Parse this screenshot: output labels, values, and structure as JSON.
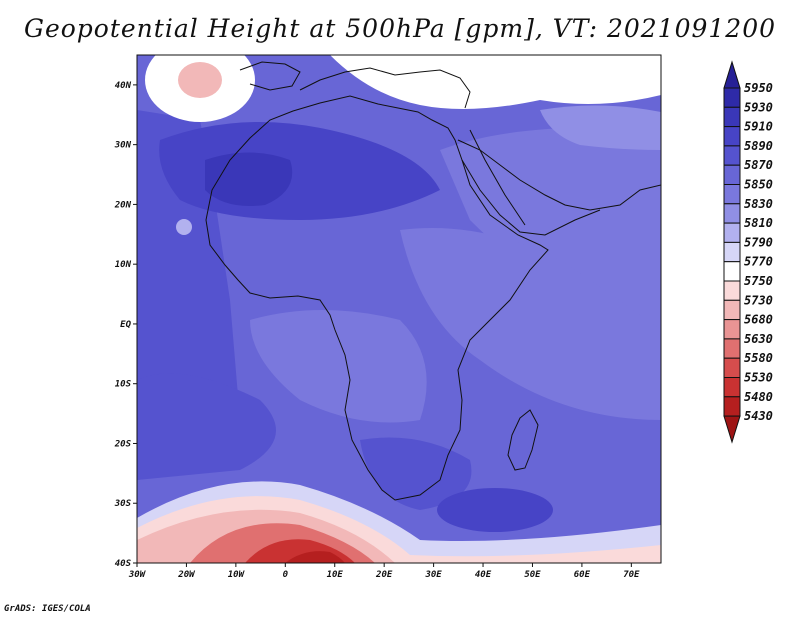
{
  "title": "Geopotential Height at 500hPa [gpm], VT: 2021091200",
  "credit": "GrADS: IGES/COLA",
  "chart_data": {
    "type": "heatmap",
    "title": "Geopotential Height at 500hPa [gpm], VT: 2021091200",
    "variable": "Geopotential Height",
    "level": "500hPa",
    "units": "gpm",
    "valid_time": "2021091200",
    "xlim": [
      -30,
      76
    ],
    "ylim": [
      -40,
      45
    ],
    "x_ticks": [
      {
        "value": -30,
        "label": "30W"
      },
      {
        "value": -20,
        "label": "20W"
      },
      {
        "value": -10,
        "label": "10W"
      },
      {
        "value": 0,
        "label": "0"
      },
      {
        "value": 10,
        "label": "10E"
      },
      {
        "value": 20,
        "label": "20E"
      },
      {
        "value": 30,
        "label": "30E"
      },
      {
        "value": 40,
        "label": "40E"
      },
      {
        "value": 50,
        "label": "50E"
      },
      {
        "value": 60,
        "label": "60E"
      },
      {
        "value": 70,
        "label": "70E"
      }
    ],
    "y_ticks": [
      {
        "value": 40,
        "label": "40N"
      },
      {
        "value": 30,
        "label": "30N"
      },
      {
        "value": 20,
        "label": "20N"
      },
      {
        "value": 10,
        "label": "10N"
      },
      {
        "value": 0,
        "label": "EQ"
      },
      {
        "value": -10,
        "label": "10S"
      },
      {
        "value": -20,
        "label": "20S"
      },
      {
        "value": -30,
        "label": "30S"
      },
      {
        "value": -40,
        "label": "40S"
      }
    ],
    "colorbar": {
      "levels": [
        5950,
        5930,
        5910,
        5890,
        5870,
        5850,
        5830,
        5810,
        5790,
        5770,
        5750,
        5730,
        5680,
        5630,
        5580,
        5530,
        5480,
        5430
      ],
      "colors": [
        "#262096",
        "#2e2aa8",
        "#3a37b8",
        "#4744c6",
        "#5553cf",
        "#6866d6",
        "#7a78dd",
        "#908fe5",
        "#b2b1ef",
        "#d6d6f7",
        "#ffffff",
        "#fadada",
        "#f2b8b8",
        "#e99494",
        "#e07070",
        "#d64d4d",
        "#c93232",
        "#b51f1f",
        "#9e1414"
      ]
    },
    "regions": [
      {
        "name": "base",
        "value": 5850
      },
      {
        "name": "sahara-high",
        "value": 5890
      },
      {
        "name": "sahara-core",
        "value": 5910
      },
      {
        "name": "arabia",
        "value": 5830
      },
      {
        "name": "east-africa",
        "value": 5830
      },
      {
        "name": "central-africa",
        "value": 5830
      },
      {
        "name": "atlantic-tropics",
        "value": 5870
      },
      {
        "name": "south-atlantic-high",
        "value": 5870
      },
      {
        "name": "southern-africa",
        "value": 5880
      },
      {
        "name": "madagascar-high",
        "value": 5900
      },
      {
        "name": "north-atlantic-cutoff",
        "value": 5750
      },
      {
        "name": "north-atlantic-core",
        "value": 5680
      },
      {
        "name": "europe-trough",
        "value": 5760
      },
      {
        "name": "arabia-north",
        "value": 5810
      },
      {
        "name": "cape-verde-low",
        "value": 5790
      },
      {
        "name": "southern-trough-1",
        "value": 5770
      },
      {
        "name": "southern-trough-2",
        "value": 5730
      },
      {
        "name": "southern-trough-3",
        "value": 5680
      },
      {
        "name": "southern-trough-4",
        "value": 5580
      },
      {
        "name": "southern-trough-5",
        "value": 5480
      },
      {
        "name": "southern-trough-6",
        "value": 5430
      }
    ]
  }
}
